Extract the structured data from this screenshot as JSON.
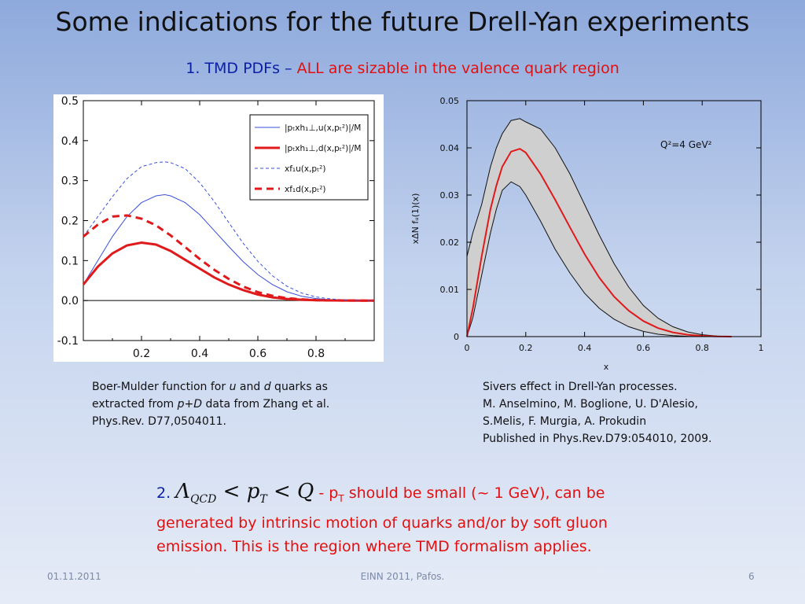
{
  "slide": {
    "title": "Some indications for the future Drell-Yan experiments",
    "subtitle_part1": "1. TMD PDFs – ",
    "subtitle_part2": "ALL are sizable in the valence quark region",
    "caption_left": {
      "l1a": "Boer-Mulder function for ",
      "l1u": "u",
      "l1and": " and ",
      "l1d": "d",
      "l1b": " quarks as",
      "l2a": "extracted from ",
      "l2pd": "p+D",
      "l2b": " data from Zhang et al.",
      "l3": "Phys.Rev. D77,0504011."
    },
    "caption_right": {
      "l1": "Sivers effect in Drell-Yan processes.",
      "l2": "M. Anselmino, M. Boglione, U. D'Alesio,",
      "l3": "S.Melis, F. Murgia, A. Prokudin",
      "l4": "Published in Phys.Rev.D79:054010, 2009."
    },
    "point2": {
      "number": "2. ",
      "formula_lambda": "Λ",
      "formula_lambda_sub": "QCD",
      "formula_lt1": " < ",
      "formula_p": "p",
      "formula_p_sub": "T",
      "formula_lt2": " < ",
      "formula_q": "Q",
      "dash": " - ",
      "pt_p": "p",
      "pt_sub": "T",
      "text1": " should be small (~ 1 GeV), can be",
      "text2": "generated by intrinsic motion of quarks and/or by soft gluon",
      "text3": "emission. This is the region where TMD formalism applies."
    },
    "footer": {
      "date": "01.11.2011",
      "event": "EINN 2011, Pafos.",
      "page": "6"
    },
    "colors": {
      "blue_text": "#0a1fa8",
      "red_text": "#e21010"
    }
  },
  "chart_data": [
    {
      "type": "line",
      "title": "",
      "xlabel": "",
      "ylabel": "",
      "xlim": [
        0,
        1
      ],
      "ylim": [
        -0.1,
        0.5
      ],
      "xticks": [
        "0.2",
        "0.4",
        "0.6",
        "0.8"
      ],
      "yticks": [
        "-0.1",
        "0.0",
        "0.1",
        "0.2",
        "0.3",
        "0.4",
        "0.5"
      ],
      "legend_position": "top-right",
      "legend": [
        {
          "label": "|pₜxh₁⊥,u(x,pₜ²)|/M",
          "color": "#3a4fd8",
          "style": "solid-thin"
        },
        {
          "label": "|pₜxh₁⊥,d(x,pₜ²)|/M",
          "color": "#e0191b",
          "style": "solid-thick"
        },
        {
          "label": "xf₁u(x,pₜ²)",
          "color": "#3a4fd8",
          "style": "dashed-thin"
        },
        {
          "label": "xf₁d(x,pₜ²)",
          "color": "#e0191b",
          "style": "dashed-thick"
        }
      ],
      "series": [
        {
          "name": "|pₜxh₁⊥,u(x,pₜ²)|/M",
          "x": [
            0,
            0.05,
            0.1,
            0.15,
            0.2,
            0.25,
            0.28,
            0.3,
            0.35,
            0.4,
            0.45,
            0.5,
            0.55,
            0.6,
            0.65,
            0.7,
            0.75,
            0.8,
            0.85,
            0.9,
            0.95,
            1.0
          ],
          "y": [
            0.04,
            0.1,
            0.16,
            0.21,
            0.245,
            0.262,
            0.265,
            0.262,
            0.245,
            0.215,
            0.175,
            0.135,
            0.097,
            0.065,
            0.04,
            0.022,
            0.011,
            0.005,
            0.002,
            0.0006,
            0.0001,
            0.0
          ]
        },
        {
          "name": "|pₜxh₁⊥,d(x,pₜ²)|/M",
          "x": [
            0,
            0.05,
            0.1,
            0.15,
            0.2,
            0.25,
            0.3,
            0.35,
            0.4,
            0.45,
            0.5,
            0.55,
            0.6,
            0.65,
            0.7,
            0.75,
            0.8,
            0.85,
            0.9,
            0.95,
            1.0
          ],
          "y": [
            0.04,
            0.085,
            0.118,
            0.138,
            0.145,
            0.14,
            0.124,
            0.102,
            0.08,
            0.058,
            0.04,
            0.026,
            0.015,
            0.008,
            0.004,
            0.002,
            0.0008,
            0.0003,
            0.0001,
            0.0,
            0.0
          ]
        },
        {
          "name": "xf₁u(x,pₜ²)",
          "x": [
            0,
            0.05,
            0.1,
            0.15,
            0.2,
            0.25,
            0.28,
            0.3,
            0.35,
            0.4,
            0.45,
            0.5,
            0.55,
            0.6,
            0.65,
            0.7,
            0.75,
            0.8,
            0.85,
            0.9,
            0.95,
            1.0
          ],
          "y": [
            0.16,
            0.21,
            0.26,
            0.305,
            0.335,
            0.345,
            0.347,
            0.345,
            0.33,
            0.295,
            0.248,
            0.195,
            0.143,
            0.098,
            0.062,
            0.036,
            0.019,
            0.009,
            0.004,
            0.0015,
            0.0004,
            0.0
          ]
        },
        {
          "name": "xf₁d(x,pₜ²)",
          "x": [
            0,
            0.05,
            0.1,
            0.15,
            0.2,
            0.25,
            0.3,
            0.35,
            0.4,
            0.45,
            0.5,
            0.55,
            0.6,
            0.65,
            0.7,
            0.75,
            0.8,
            0.85,
            0.9,
            0.95,
            1.0
          ],
          "y": [
            0.16,
            0.19,
            0.21,
            0.213,
            0.205,
            0.188,
            0.163,
            0.134,
            0.104,
            0.077,
            0.054,
            0.035,
            0.021,
            0.012,
            0.006,
            0.003,
            0.0012,
            0.0004,
            0.0001,
            0.0,
            0.0
          ]
        }
      ]
    },
    {
      "type": "line",
      "title": "",
      "xlabel": "x",
      "ylabel": "xΔN fᵤ(1)(x)",
      "annotation": "Q²=4 GeV²",
      "xlim": [
        0,
        1
      ],
      "ylim": [
        0,
        0.05
      ],
      "xticks": [
        "0",
        "0.2",
        "0.4",
        "0.6",
        "0.8",
        "1"
      ],
      "yticks": [
        "0",
        "0.01",
        "0.02",
        "0.03",
        "0.04",
        "0.05"
      ],
      "series": [
        {
          "name": "central",
          "color": "#e0191b",
          "x": [
            0,
            0.02,
            0.05,
            0.08,
            0.1,
            0.12,
            0.15,
            0.18,
            0.2,
            0.25,
            0.3,
            0.35,
            0.4,
            0.45,
            0.5,
            0.55,
            0.6,
            0.65,
            0.7,
            0.75,
            0.8,
            0.85,
            0.9
          ],
          "y": [
            0,
            0.006,
            0.017,
            0.027,
            0.032,
            0.036,
            0.0392,
            0.0398,
            0.039,
            0.0345,
            0.029,
            0.0232,
            0.0175,
            0.0125,
            0.0085,
            0.0055,
            0.0033,
            0.0018,
            0.0009,
            0.0004,
            0.00015,
            4e-05,
            0.0
          ]
        },
        {
          "name": "upper",
          "x": [
            0,
            0.02,
            0.05,
            0.08,
            0.1,
            0.12,
            0.15,
            0.18,
            0.2,
            0.25,
            0.3,
            0.35,
            0.4,
            0.45,
            0.5,
            0.55,
            0.6,
            0.65,
            0.7,
            0.75,
            0.8,
            0.85,
            0.9
          ],
          "y": [
            0.017,
            0.022,
            0.028,
            0.036,
            0.04,
            0.043,
            0.0458,
            0.0462,
            0.0455,
            0.044,
            0.04,
            0.0345,
            0.028,
            0.0215,
            0.0155,
            0.0105,
            0.0066,
            0.0039,
            0.0021,
            0.001,
            0.0004,
            0.00012,
            0.0
          ]
        },
        {
          "name": "lower",
          "x": [
            0,
            0.02,
            0.05,
            0.08,
            0.1,
            0.12,
            0.15,
            0.18,
            0.2,
            0.25,
            0.3,
            0.35,
            0.4,
            0.45,
            0.5,
            0.55,
            0.6,
            0.65,
            0.7,
            0.75,
            0.8,
            0.85,
            0.9
          ],
          "y": [
            0,
            0.004,
            0.013,
            0.022,
            0.027,
            0.031,
            0.0328,
            0.0318,
            0.03,
            0.0245,
            0.0185,
            0.0135,
            0.0092,
            0.006,
            0.0037,
            0.0021,
            0.0011,
            0.0005,
            0.0002,
            6e-05,
            1e-05,
            0.0,
            0.0
          ]
        }
      ]
    }
  ]
}
